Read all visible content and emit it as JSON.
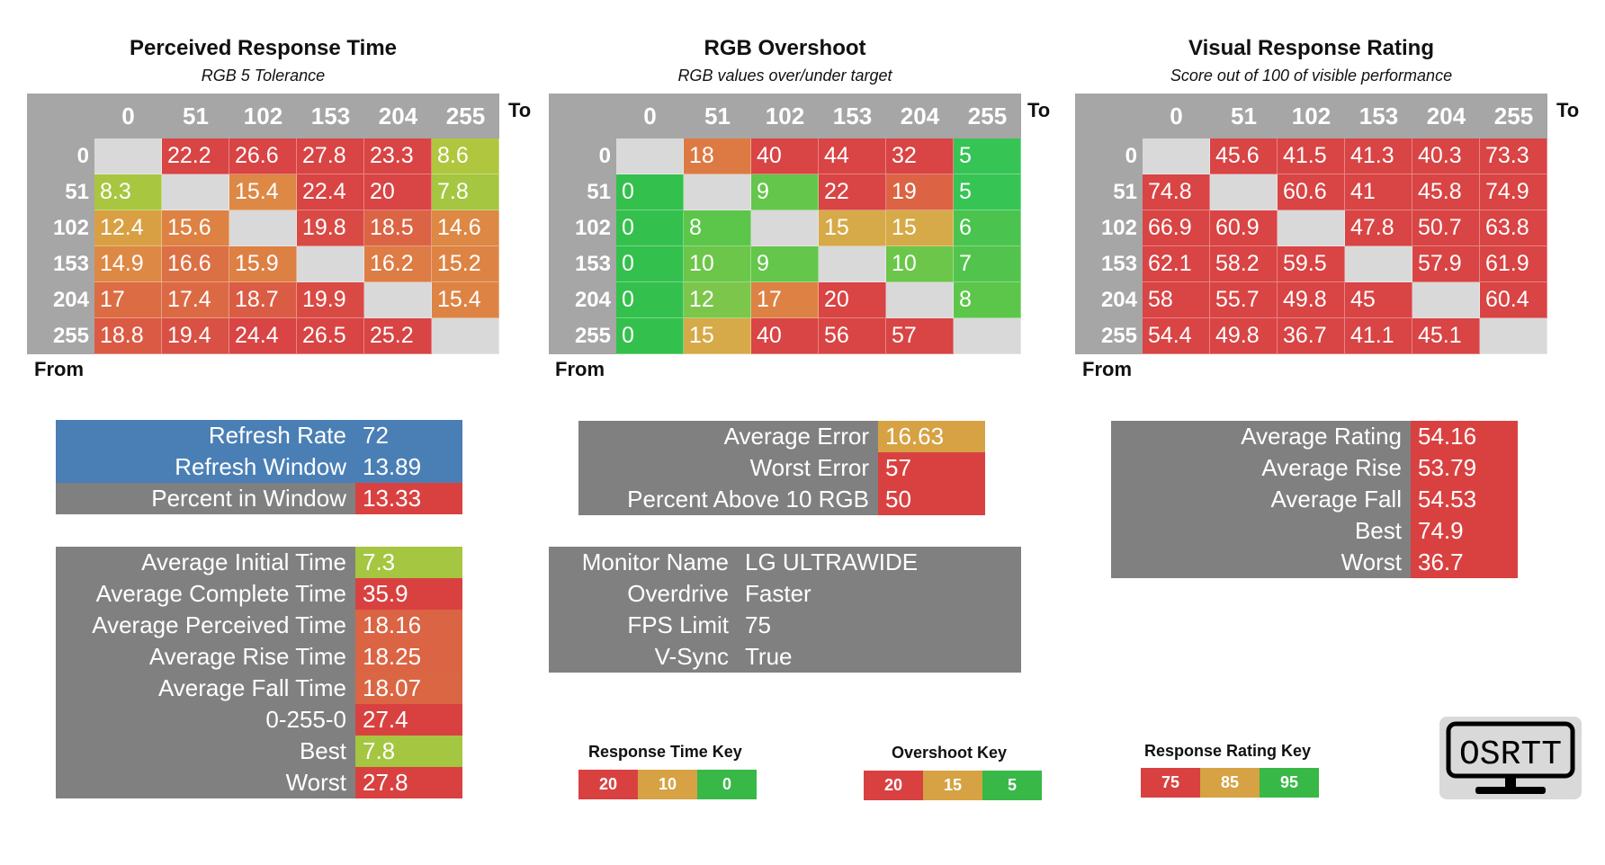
{
  "colors": {
    "header_gray": "#a6a6a6",
    "diag_gray": "#d9d9d9",
    "panel_gray": "#808080",
    "blue": "#4a7fb5",
    "red": "#d94141",
    "orange": "#df7d45",
    "amber": "#d6a243",
    "yellowgreen": "#a5c640",
    "green": "#4cc24a",
    "green_dark": "#32c25a"
  },
  "axis": {
    "to": "To",
    "from": "From"
  },
  "grids": [
    {
      "title": "Perceived Response Time",
      "subtitle": "RGB 5 Tolerance",
      "cols": [
        "0",
        "51",
        "102",
        "153",
        "204",
        "255"
      ],
      "rows": [
        {
          "label": "0",
          "cells": [
            {
              "v": "",
              "c": "diag"
            },
            {
              "v": "22.2",
              "c": "#d94444"
            },
            {
              "v": "26.6",
              "c": "#d94444"
            },
            {
              "v": "27.8",
              "c": "#d94444"
            },
            {
              "v": "23.3",
              "c": "#d94444"
            },
            {
              "v": "8.6",
              "c": "#b0c63f"
            }
          ]
        },
        {
          "label": "51",
          "cells": [
            {
              "v": "8.3",
              "c": "#a8c63f"
            },
            {
              "v": "",
              "c": "diag"
            },
            {
              "v": "15.4",
              "c": "#dd8845"
            },
            {
              "v": "22.4",
              "c": "#d94444"
            },
            {
              "v": "20",
              "c": "#d94444"
            },
            {
              "v": "7.8",
              "c": "#a5c640"
            }
          ]
        },
        {
          "label": "102",
          "cells": [
            {
              "v": "12.4",
              "c": "#d9a043"
            },
            {
              "v": "15.6",
              "c": "#dd8243"
            },
            {
              "v": "",
              "c": "diag"
            },
            {
              "v": "19.8",
              "c": "#d94a44"
            },
            {
              "v": "18.5",
              "c": "#db6444"
            },
            {
              "v": "14.6",
              "c": "#dd8845"
            }
          ]
        },
        {
          "label": "153",
          "cells": [
            {
              "v": "14.9",
              "c": "#dd8845"
            },
            {
              "v": "16.6",
              "c": "#db7044"
            },
            {
              "v": "15.9",
              "c": "#dd8044"
            },
            {
              "v": "",
              "c": "diag"
            },
            {
              "v": "16.2",
              "c": "#dd7c44"
            },
            {
              "v": "15.2",
              "c": "#dd8445"
            }
          ]
        },
        {
          "label": "204",
          "cells": [
            {
              "v": "17",
              "c": "#db6c44"
            },
            {
              "v": "17.4",
              "c": "#db6a44"
            },
            {
              "v": "18.7",
              "c": "#db5c44"
            },
            {
              "v": "19.9",
              "c": "#d94a44"
            },
            {
              "v": "",
              "c": "diag"
            },
            {
              "v": "15.4",
              "c": "#dd8445"
            }
          ]
        },
        {
          "label": "255",
          "cells": [
            {
              "v": "18.8",
              "c": "#db5a44"
            },
            {
              "v": "19.4",
              "c": "#d95044"
            },
            {
              "v": "24.4",
              "c": "#d94444"
            },
            {
              "v": "26.5",
              "c": "#d94444"
            },
            {
              "v": "25.2",
              "c": "#d94444"
            },
            {
              "v": "",
              "c": "diag"
            }
          ]
        }
      ]
    },
    {
      "title": "RGB Overshoot",
      "subtitle": "RGB values over/under target",
      "cols": [
        "0",
        "51",
        "102",
        "153",
        "204",
        "255"
      ],
      "rows": [
        {
          "label": "0",
          "cells": [
            {
              "v": "",
              "c": "diag"
            },
            {
              "v": "18",
              "c": "#dd7a44"
            },
            {
              "v": "40",
              "c": "#d94444"
            },
            {
              "v": "44",
              "c": "#d94444"
            },
            {
              "v": "32",
              "c": "#d94444"
            },
            {
              "v": "5",
              "c": "#36c454"
            }
          ]
        },
        {
          "label": "51",
          "cells": [
            {
              "v": "0",
              "c": "#34c04c"
            },
            {
              "v": "",
              "c": "diag"
            },
            {
              "v": "9",
              "c": "#64c64a"
            },
            {
              "v": "22",
              "c": "#d94444"
            },
            {
              "v": "19",
              "c": "#dc6444"
            },
            {
              "v": "5",
              "c": "#36c454"
            }
          ]
        },
        {
          "label": "102",
          "cells": [
            {
              "v": "0",
              "c": "#34c04c"
            },
            {
              "v": "8",
              "c": "#5cc64a"
            },
            {
              "v": "",
              "c": "diag"
            },
            {
              "v": "15",
              "c": "#d6aa48"
            },
            {
              "v": "15",
              "c": "#d6aa48"
            },
            {
              "v": "6",
              "c": "#4ac44e"
            }
          ]
        },
        {
          "label": "153",
          "cells": [
            {
              "v": "0",
              "c": "#34c04c"
            },
            {
              "v": "10",
              "c": "#6cc64a"
            },
            {
              "v": "9",
              "c": "#64c64a"
            },
            {
              "v": "",
              "c": "diag"
            },
            {
              "v": "10",
              "c": "#6cc64a"
            },
            {
              "v": "7",
              "c": "#52c44e"
            }
          ]
        },
        {
          "label": "204",
          "cells": [
            {
              "v": "0",
              "c": "#34c04c"
            },
            {
              "v": "12",
              "c": "#7cc64c"
            },
            {
              "v": "17",
              "c": "#dd8244"
            },
            {
              "v": "20",
              "c": "#d94444"
            },
            {
              "v": "",
              "c": "diag"
            },
            {
              "v": "8",
              "c": "#5cc64a"
            }
          ]
        },
        {
          "label": "255",
          "cells": [
            {
              "v": "0",
              "c": "#34c04c"
            },
            {
              "v": "15",
              "c": "#d6aa48"
            },
            {
              "v": "40",
              "c": "#d94444"
            },
            {
              "v": "56",
              "c": "#d94444"
            },
            {
              "v": "57",
              "c": "#d94444"
            },
            {
              "v": "",
              "c": "diag"
            }
          ]
        }
      ]
    },
    {
      "title": "Visual Response Rating",
      "subtitle": "Score out of 100 of visible performance",
      "cols": [
        "0",
        "51",
        "102",
        "153",
        "204",
        "255"
      ],
      "rows": [
        {
          "label": "0",
          "cells": [
            {
              "v": "",
              "c": "diag"
            },
            {
              "v": "45.6",
              "c": "#d94444"
            },
            {
              "v": "41.5",
              "c": "#d94444"
            },
            {
              "v": "41.3",
              "c": "#d94444"
            },
            {
              "v": "40.3",
              "c": "#d94444"
            },
            {
              "v": "73.3",
              "c": "#d94444"
            }
          ]
        },
        {
          "label": "51",
          "cells": [
            {
              "v": "74.8",
              "c": "#d94444"
            },
            {
              "v": "",
              "c": "diag"
            },
            {
              "v": "60.6",
              "c": "#d94444"
            },
            {
              "v": "41",
              "c": "#d94444"
            },
            {
              "v": "45.8",
              "c": "#d94444"
            },
            {
              "v": "74.9",
              "c": "#d94444"
            }
          ]
        },
        {
          "label": "102",
          "cells": [
            {
              "v": "66.9",
              "c": "#d94444"
            },
            {
              "v": "60.9",
              "c": "#d94444"
            },
            {
              "v": "",
              "c": "diag"
            },
            {
              "v": "47.8",
              "c": "#d94444"
            },
            {
              "v": "50.7",
              "c": "#d94444"
            },
            {
              "v": "63.8",
              "c": "#d94444"
            }
          ]
        },
        {
          "label": "153",
          "cells": [
            {
              "v": "62.1",
              "c": "#d94444"
            },
            {
              "v": "58.2",
              "c": "#d94444"
            },
            {
              "v": "59.5",
              "c": "#d94444"
            },
            {
              "v": "",
              "c": "diag"
            },
            {
              "v": "57.9",
              "c": "#d94444"
            },
            {
              "v": "61.9",
              "c": "#d94444"
            }
          ]
        },
        {
          "label": "204",
          "cells": [
            {
              "v": "58",
              "c": "#d94444"
            },
            {
              "v": "55.7",
              "c": "#d94444"
            },
            {
              "v": "49.8",
              "c": "#d94444"
            },
            {
              "v": "45",
              "c": "#d94444"
            },
            {
              "v": "",
              "c": "diag"
            },
            {
              "v": "60.4",
              "c": "#d94444"
            }
          ]
        },
        {
          "label": "255",
          "cells": [
            {
              "v": "54.4",
              "c": "#d94444"
            },
            {
              "v": "49.8",
              "c": "#d94444"
            },
            {
              "v": "36.7",
              "c": "#d94444"
            },
            {
              "v": "41.1",
              "c": "#d94444"
            },
            {
              "v": "45.1",
              "c": "#d94444"
            },
            {
              "v": "",
              "c": "diag"
            }
          ]
        }
      ]
    }
  ],
  "refresh_panel": [
    {
      "label": "Refresh Rate",
      "value": "72",
      "lbg": "#4a7fb5",
      "vbg": "#4a7fb5"
    },
    {
      "label": "Refresh Window",
      "value": "13.89",
      "lbg": "#4a7fb5",
      "vbg": "#4a7fb5"
    },
    {
      "label": "Percent in Window",
      "value": "13.33",
      "lbg": "#808080",
      "vbg": "#d94141"
    }
  ],
  "response_panel": [
    {
      "label": "Average Initial Time",
      "value": "7.3",
      "vbg": "#a5c640"
    },
    {
      "label": "Average Complete Time",
      "value": "35.9",
      "vbg": "#d94141"
    },
    {
      "label": "Average Perceived Time",
      "value": "18.16",
      "vbg": "#db6444"
    },
    {
      "label": "Average Rise Time",
      "value": "18.25",
      "vbg": "#db6444"
    },
    {
      "label": "Average Fall Time",
      "value": "18.07",
      "vbg": "#db6644"
    },
    {
      "label": "0-255-0",
      "value": "27.4",
      "vbg": "#d94141"
    },
    {
      "label": "Best",
      "value": "7.8",
      "vbg": "#a5c640"
    },
    {
      "label": "Worst",
      "value": "27.8",
      "vbg": "#d94141"
    }
  ],
  "error_panel": [
    {
      "label": "Average Error",
      "value": "16.63",
      "vbg": "#d6a243"
    },
    {
      "label": "Worst Error",
      "value": "57",
      "vbg": "#d94141"
    },
    {
      "label": "Percent Above 10 RGB",
      "value": "50",
      "vbg": "#d94141"
    }
  ],
  "monitor_panel": [
    {
      "label": "Monitor Name",
      "value": "LG ULTRAWIDE"
    },
    {
      "label": "Overdrive",
      "value": "Faster"
    },
    {
      "label": "FPS Limit",
      "value": "75"
    },
    {
      "label": "V-Sync",
      "value": "True"
    }
  ],
  "rating_panel": [
    {
      "label": "Average Rating",
      "value": "54.16",
      "vbg": "#d94141"
    },
    {
      "label": "Average Rise",
      "value": "53.79",
      "vbg": "#d94141"
    },
    {
      "label": "Average Fall",
      "value": "54.53",
      "vbg": "#d94141"
    },
    {
      "label": "Best",
      "value": "74.9",
      "vbg": "#d94141"
    },
    {
      "label": "Worst",
      "value": "36.7",
      "vbg": "#d94141"
    }
  ],
  "keys": [
    {
      "title": "Response Time Key",
      "items": [
        {
          "v": "20",
          "c": "#d94141"
        },
        {
          "v": "10",
          "c": "#d6a243"
        },
        {
          "v": "0",
          "c": "#38b847"
        }
      ]
    },
    {
      "title": "Overshoot Key",
      "items": [
        {
          "v": "20",
          "c": "#d94141"
        },
        {
          "v": "15",
          "c": "#d6a243"
        },
        {
          "v": "5",
          "c": "#38b847"
        }
      ]
    },
    {
      "title": "Response Rating Key",
      "items": [
        {
          "v": "75",
          "c": "#d94141"
        },
        {
          "v": "85",
          "c": "#d6a243"
        },
        {
          "v": "95",
          "c": "#38b847"
        }
      ]
    }
  ],
  "logo": {
    "text": "OSRTT",
    "icon": "monitor-icon"
  }
}
